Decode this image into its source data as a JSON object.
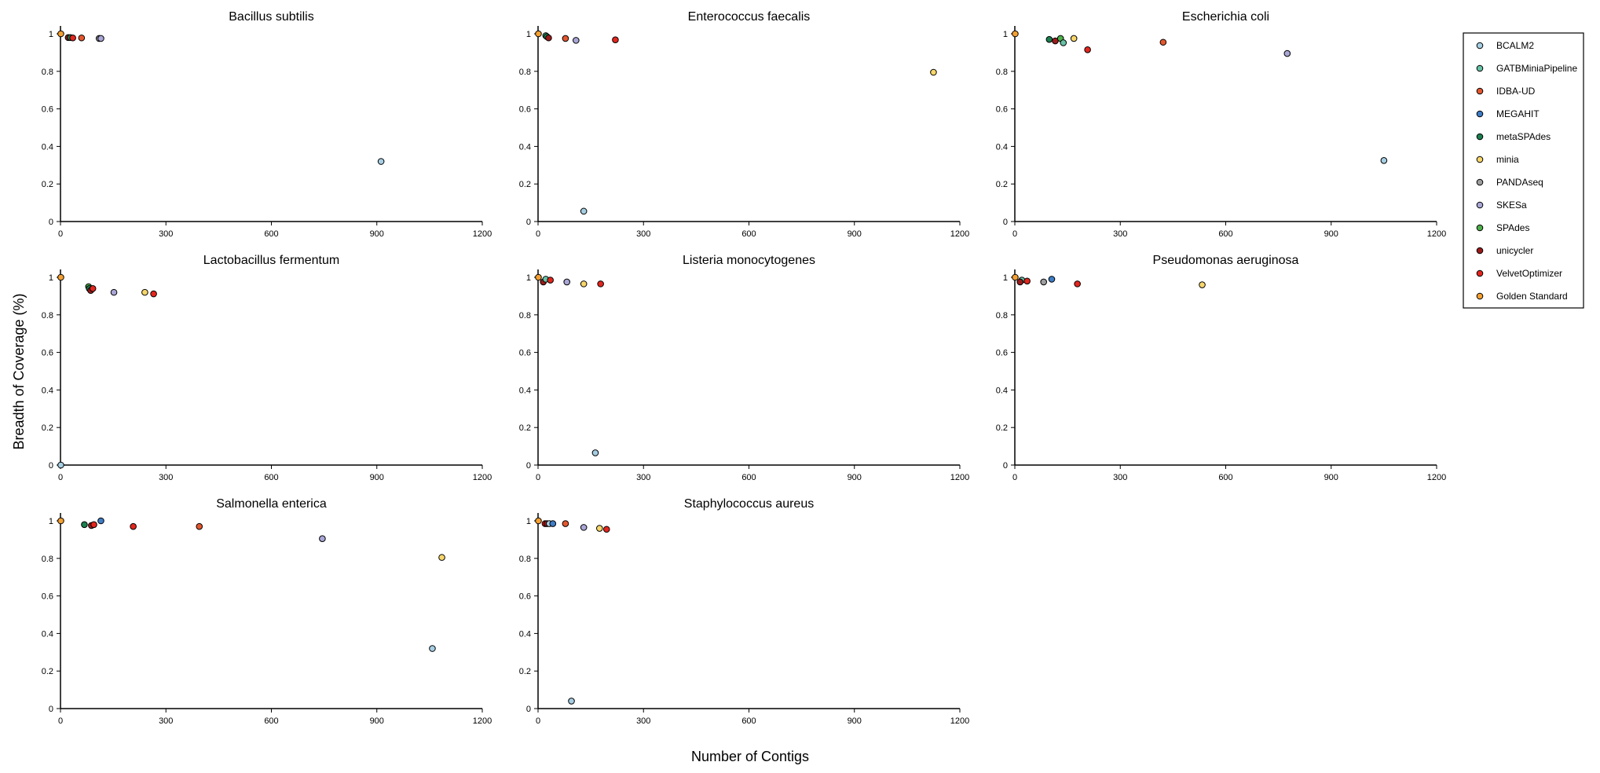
{
  "figure": {
    "xlabel": "Number of Contigs",
    "ylabel": "Breadth of Coverage (%)"
  },
  "chart_data": {
    "type": "scatter",
    "xlim": [
      0,
      1200
    ],
    "ylim": [
      0,
      1
    ],
    "xticks": [
      0,
      300,
      600,
      900,
      1200
    ],
    "yticks": [
      0,
      0.2,
      0.4,
      0.6,
      0.8,
      1
    ],
    "ytick_labels": [
      "0",
      "0.2",
      "0.4",
      "0.6",
      "0.8",
      "1"
    ],
    "grid": false,
    "legend_position": "right",
    "legend": [
      {
        "name": "BCALM2",
        "color": "#a6cee3"
      },
      {
        "name": "GATBMiniaPipeline",
        "color": "#66c2a5"
      },
      {
        "name": "IDBA-UD",
        "color": "#e4572e"
      },
      {
        "name": "MEGAHIT",
        "color": "#3e7cc6"
      },
      {
        "name": "metaSPAdes",
        "color": "#1b7f4f"
      },
      {
        "name": "minia",
        "color": "#f7d66b"
      },
      {
        "name": "PANDAseq",
        "color": "#9e9e9e"
      },
      {
        "name": "SKESa",
        "color": "#a9a6d6"
      },
      {
        "name": "SPAdes",
        "color": "#4daf4a"
      },
      {
        "name": "unicycler",
        "color": "#9b1b1b"
      },
      {
        "name": "VelvetOptimizer",
        "color": "#e3261e"
      },
      {
        "name": "Golden Standard",
        "color": "#f5a032"
      }
    ],
    "panels": [
      {
        "title": "Bacillus subtilis",
        "points": [
          {
            "series": "Golden Standard",
            "x": 1,
            "y": 1.0
          },
          {
            "series": "unicycler",
            "x": 22,
            "y": 0.98
          },
          {
            "series": "metaSPAdes",
            "x": 28,
            "y": 0.98
          },
          {
            "series": "VelvetOptimizer",
            "x": 35,
            "y": 0.978
          },
          {
            "series": "IDBA-UD",
            "x": 60,
            "y": 0.978
          },
          {
            "series": "PANDAseq",
            "x": 110,
            "y": 0.975
          },
          {
            "series": "SKESa",
            "x": 115,
            "y": 0.975
          },
          {
            "series": "BCALM2",
            "x": 912,
            "y": 0.32
          }
        ]
      },
      {
        "title": "Enterococcus faecalis",
        "points": [
          {
            "series": "Golden Standard",
            "x": 1,
            "y": 1.0
          },
          {
            "series": "GATBMiniaPipeline",
            "x": 22,
            "y": 0.99
          },
          {
            "series": "metaSPAdes",
            "x": 25,
            "y": 0.985
          },
          {
            "series": "unicycler",
            "x": 30,
            "y": 0.978
          },
          {
            "series": "IDBA-UD",
            "x": 78,
            "y": 0.975
          },
          {
            "series": "SKESa",
            "x": 108,
            "y": 0.965
          },
          {
            "series": "VelvetOptimizer",
            "x": 220,
            "y": 0.968
          },
          {
            "series": "minia",
            "x": 1125,
            "y": 0.795
          },
          {
            "series": "BCALM2",
            "x": 130,
            "y": 0.055
          }
        ]
      },
      {
        "title": "Escherichia coli",
        "points": [
          {
            "series": "Golden Standard",
            "x": 1,
            "y": 1.0
          },
          {
            "series": "metaSPAdes",
            "x": 98,
            "y": 0.97
          },
          {
            "series": "unicycler",
            "x": 115,
            "y": 0.962
          },
          {
            "series": "SPAdes",
            "x": 130,
            "y": 0.975
          },
          {
            "series": "GATBMiniaPipeline",
            "x": 138,
            "y": 0.952
          },
          {
            "series": "minia",
            "x": 168,
            "y": 0.975
          },
          {
            "series": "VelvetOptimizer",
            "x": 207,
            "y": 0.915
          },
          {
            "series": "IDBA-UD",
            "x": 422,
            "y": 0.955
          },
          {
            "series": "SKESa",
            "x": 775,
            "y": 0.895
          },
          {
            "series": "BCALM2",
            "x": 1050,
            "y": 0.325
          }
        ]
      },
      {
        "title": "Lactobacillus fermentum",
        "points": [
          {
            "series": "Golden Standard",
            "x": 1,
            "y": 1.0
          },
          {
            "series": "SPAdes",
            "x": 80,
            "y": 0.95
          },
          {
            "series": "metaSPAdes",
            "x": 82,
            "y": 0.94
          },
          {
            "series": "unicycler",
            "x": 86,
            "y": 0.93
          },
          {
            "series": "VelvetOptimizer",
            "x": 92,
            "y": 0.94
          },
          {
            "series": "SKESa",
            "x": 152,
            "y": 0.92
          },
          {
            "series": "minia",
            "x": 240,
            "y": 0.92
          },
          {
            "series": "VelvetOptimizer",
            "x": 265,
            "y": 0.912
          },
          {
            "series": "BCALM2",
            "x": 1,
            "y": 0.0
          }
        ]
      },
      {
        "title": "Listeria monocytogenes",
        "points": [
          {
            "series": "Golden Standard",
            "x": 1,
            "y": 1.0
          },
          {
            "series": "unicycler",
            "x": 15,
            "y": 0.975
          },
          {
            "series": "GATBMiniaPipeline",
            "x": 22,
            "y": 0.99
          },
          {
            "series": "VelvetOptimizer",
            "x": 35,
            "y": 0.985
          },
          {
            "series": "SKESa",
            "x": 82,
            "y": 0.975
          },
          {
            "series": "minia",
            "x": 130,
            "y": 0.965
          },
          {
            "series": "VelvetOptimizer",
            "x": 178,
            "y": 0.965
          },
          {
            "series": "BCALM2",
            "x": 163,
            "y": 0.065
          }
        ]
      },
      {
        "title": "Pseudomonas aeruginosa",
        "points": [
          {
            "series": "Golden Standard",
            "x": 1,
            "y": 1.0
          },
          {
            "series": "GATBMiniaPipeline",
            "x": 20,
            "y": 0.985
          },
          {
            "series": "unicycler",
            "x": 15,
            "y": 0.975
          },
          {
            "series": "VelvetOptimizer",
            "x": 35,
            "y": 0.98
          },
          {
            "series": "PANDAseq",
            "x": 82,
            "y": 0.975
          },
          {
            "series": "MEGAHIT",
            "x": 105,
            "y": 0.99
          },
          {
            "series": "VelvetOptimizer",
            "x": 178,
            "y": 0.965
          },
          {
            "series": "minia",
            "x": 533,
            "y": 0.96
          }
        ]
      },
      {
        "title": "Salmonella enterica",
        "points": [
          {
            "series": "Golden Standard",
            "x": 1,
            "y": 1.0
          },
          {
            "series": "metaSPAdes",
            "x": 68,
            "y": 0.98
          },
          {
            "series": "unicycler",
            "x": 88,
            "y": 0.975
          },
          {
            "series": "VelvetOptimizer",
            "x": 95,
            "y": 0.98
          },
          {
            "series": "MEGAHIT",
            "x": 115,
            "y": 1.0
          },
          {
            "series": "VelvetOptimizer",
            "x": 207,
            "y": 0.97
          },
          {
            "series": "IDBA-UD",
            "x": 395,
            "y": 0.97
          },
          {
            "series": "SKESa",
            "x": 745,
            "y": 0.905
          },
          {
            "series": "minia",
            "x": 1085,
            "y": 0.805
          },
          {
            "series": "BCALM2",
            "x": 1058,
            "y": 0.32
          }
        ]
      },
      {
        "title": "Staphylococcus aureus",
        "points": [
          {
            "series": "Golden Standard",
            "x": 1,
            "y": 1.0
          },
          {
            "series": "VelvetOptimizer",
            "x": 20,
            "y": 0.985
          },
          {
            "series": "unicycler",
            "x": 25,
            "y": 0.985
          },
          {
            "series": "BCALM2",
            "x": 32,
            "y": 0.985
          },
          {
            "series": "MEGAHIT",
            "x": 42,
            "y": 0.985
          },
          {
            "series": "IDBA-UD",
            "x": 78,
            "y": 0.985
          },
          {
            "series": "SKESa",
            "x": 130,
            "y": 0.965
          },
          {
            "series": "minia",
            "x": 175,
            "y": 0.96
          },
          {
            "series": "VelvetOptimizer",
            "x": 195,
            "y": 0.955
          },
          {
            "series": "BCALM2",
            "x": 95,
            "y": 0.04
          }
        ]
      }
    ]
  }
}
